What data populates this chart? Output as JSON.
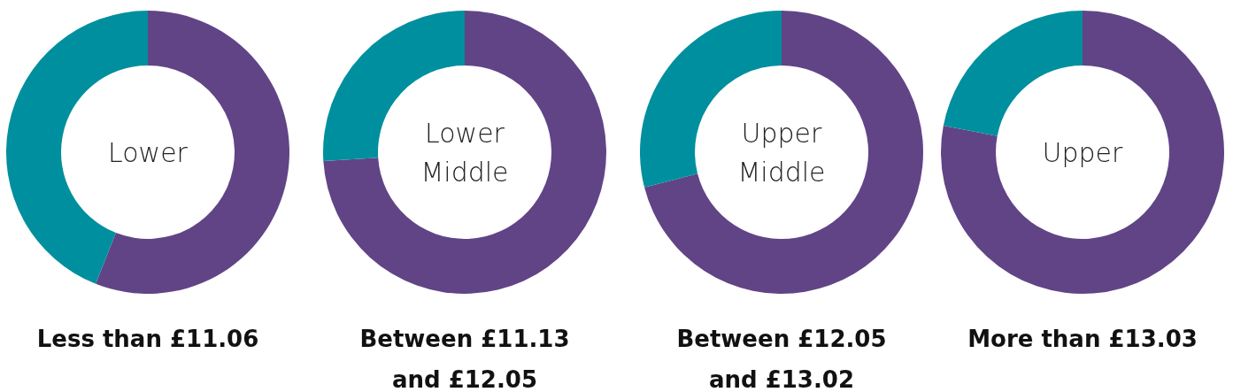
{
  "chart_data": [
    {
      "type": "donut",
      "title": "Lower",
      "categories": [
        null,
        null
      ],
      "values": [
        56,
        44
      ],
      "colors": [
        "#614486",
        "#008f9e"
      ],
      "annotations": [
        "Less than £11.06"
      ]
    },
    {
      "type": "donut",
      "title": "Lower Middle",
      "categories": [
        null,
        null
      ],
      "values": [
        74,
        26
      ],
      "colors": [
        "#614486",
        "#008f9e"
      ],
      "annotations": [
        "Between £11.13 and £12.05"
      ]
    },
    {
      "type": "donut",
      "title": "Upper Middle",
      "categories": [
        null,
        null
      ],
      "values": [
        71,
        29
      ],
      "colors": [
        "#614486",
        "#008f9e"
      ],
      "annotations": [
        "Between £12.05 and £13.02"
      ]
    },
    {
      "type": "donut",
      "title": "Upper",
      "categories": [
        null,
        null
      ],
      "values": [
        78,
        22
      ],
      "colors": [
        "#614486",
        "#008f9e"
      ],
      "annotations": [
        "More than £13.03"
      ]
    }
  ]
}
